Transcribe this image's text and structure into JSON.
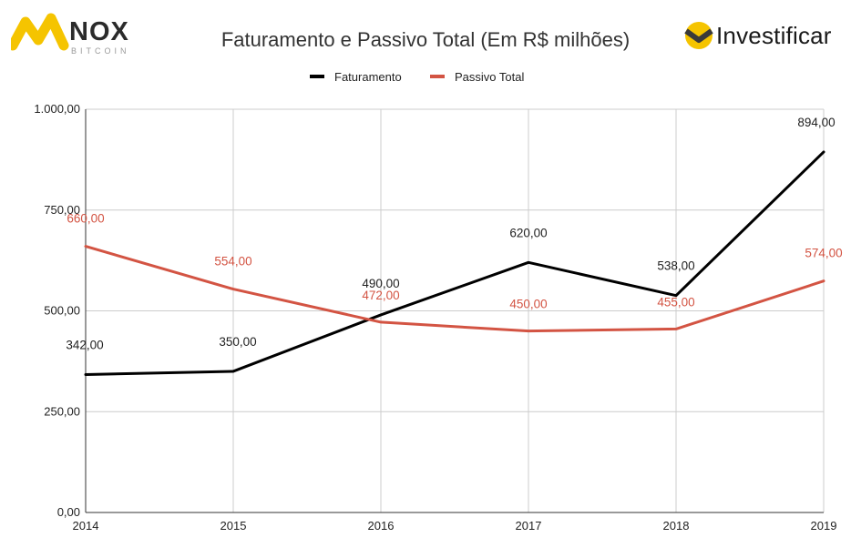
{
  "brand": {
    "left_name": "NOX",
    "left_sub": "BITCOIN",
    "right_name": "Investificar"
  },
  "colors": {
    "faturamento": "#000000",
    "passivo": "#d35443",
    "grid": "#cccccc",
    "logo_yellow": "#f5c400",
    "logo_dark": "#3a3a3a"
  },
  "chart_data": {
    "type": "line",
    "title": "Faturamento e Passivo Total (Em R$ milhões)",
    "xlabel": "",
    "ylabel": "",
    "x": [
      "2014",
      "2015",
      "2016",
      "2017",
      "2018",
      "2019"
    ],
    "ylim": [
      0,
      1000
    ],
    "yticks": [
      0,
      250,
      500,
      750,
      1000
    ],
    "ytick_labels": [
      "0,00",
      "250,00",
      "500,00",
      "750,00",
      "1.000,00"
    ],
    "grid": true,
    "legend_position": "top-center",
    "series": [
      {
        "name": "Faturamento",
        "color": "#000000",
        "values": [
          342,
          350,
          490,
          620,
          538,
          894
        ],
        "labels": [
          "342,00",
          "350,00",
          "490,00",
          "620,00",
          "538,00",
          "894,00"
        ]
      },
      {
        "name": "Passivo Total",
        "color": "#d35443",
        "values": [
          660,
          554,
          472,
          450,
          455,
          574
        ],
        "labels": [
          "660,00",
          "554,00",
          "472,00",
          "450,00",
          "455,00",
          "574,00"
        ]
      }
    ]
  }
}
